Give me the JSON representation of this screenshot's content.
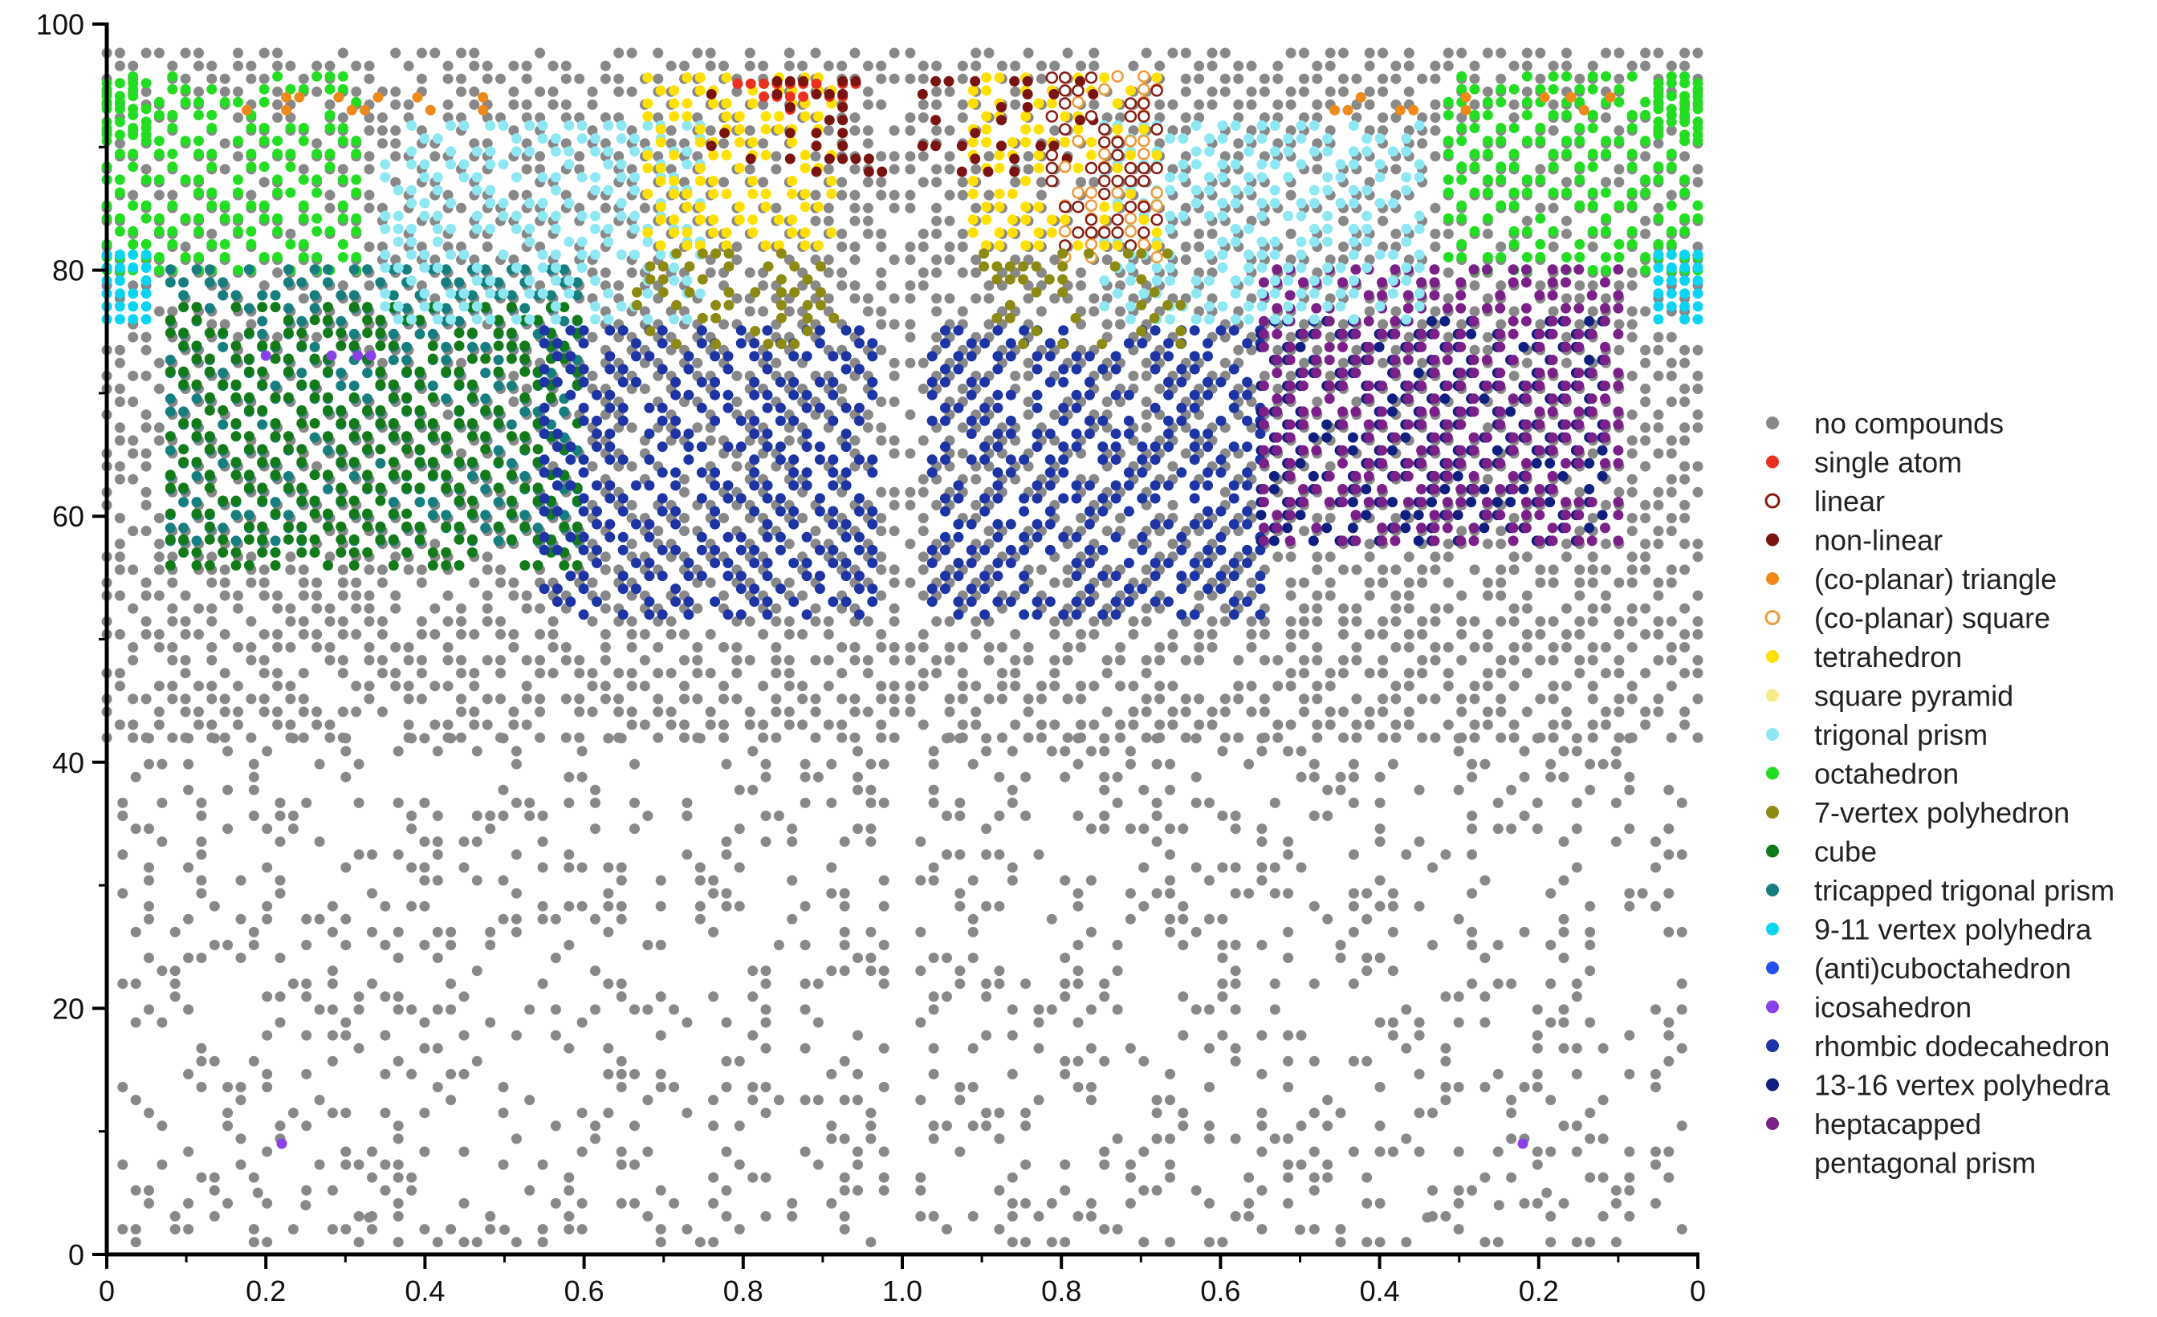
{
  "chart_data": {
    "type": "scatter",
    "title": "",
    "xlabel": "",
    "ylabel": "",
    "ylim": [
      0,
      100
    ],
    "x_tick_labels": [
      "0",
      "0.2",
      "0.4",
      "0.6",
      "0.8",
      "1.0",
      "0.8",
      "0.6",
      "0.4",
      "0.2",
      "0"
    ],
    "y_tick_labels": [
      "0",
      "20",
      "40",
      "60",
      "80",
      "100"
    ],
    "grid": false,
    "legend_position": "right",
    "legend": [
      {
        "label": "no compounds",
        "color": "#888888",
        "marker": "filled"
      },
      {
        "label": "single atom",
        "color": "#e8311f",
        "marker": "filled"
      },
      {
        "label": "linear",
        "color": "#8a1c12",
        "marker": "open"
      },
      {
        "label": "non-linear",
        "color": "#7a1410",
        "marker": "filled"
      },
      {
        "label": "(co-planar) triangle",
        "color": "#ef8a1a",
        "marker": "filled"
      },
      {
        "label": "(co-planar) square",
        "color": "#ee9a3a",
        "marker": "open"
      },
      {
        "label": "tetrahedron",
        "color": "#ffe000",
        "marker": "filled"
      },
      {
        "label": "square pyramid",
        "color": "#f6ec8a",
        "marker": "filled"
      },
      {
        "label": "trigonal prism",
        "color": "#8ee8f4",
        "marker": "filled"
      },
      {
        "label": "octahedron",
        "color": "#22dd22",
        "marker": "filled"
      },
      {
        "label": "7-vertex polyhedron",
        "color": "#8c8a12",
        "marker": "filled"
      },
      {
        "label": "cube",
        "color": "#137a1a",
        "marker": "filled"
      },
      {
        "label": "tricapped trigonal prism",
        "color": "#177e80",
        "marker": "filled"
      },
      {
        "label": "9-11 vertex polyhedra",
        "color": "#0ad4f2",
        "marker": "filled"
      },
      {
        "label": "(anti)cuboctahedron",
        "color": "#2250ee",
        "marker": "filled"
      },
      {
        "label": "icosahedron",
        "color": "#8a40e8",
        "marker": "filled"
      },
      {
        "label": "rhombic dodecahedron",
        "color": "#1c34a4",
        "marker": "filled"
      },
      {
        "label": "13-16 vertex polyhedra",
        "color": "#0f1f80",
        "marker": "filled"
      },
      {
        "label": "heptacapped\npentagonal prism",
        "color": "#7a2088",
        "marker": "filled"
      }
    ],
    "regions": [
      {
        "category": "no compounds",
        "x": [
          0.0,
          1.0
        ],
        "y": [
          42,
          98
        ],
        "mirrored": true,
        "pattern": "diagonal"
      },
      {
        "category": "no compounds",
        "x": [
          0.02,
          0.99
        ],
        "y": [
          1,
          42
        ],
        "mirrored": true,
        "pattern": "sparse-diagonal"
      },
      {
        "category": "octahedron",
        "x": [
          0.0,
          0.32
        ],
        "y": [
          80,
          96
        ],
        "mirrored": true,
        "pattern": "diagonal"
      },
      {
        "category": "octahedron",
        "x": [
          0.0,
          0.06
        ],
        "y": [
          91,
          96
        ],
        "mirrored": true,
        "pattern": "block"
      },
      {
        "category": "(co-planar) triangle",
        "x": [
          0.11,
          0.5
        ],
        "y": [
          93,
          95
        ],
        "mirrored": true,
        "pattern": "scattered"
      },
      {
        "category": "tricapped trigonal prism",
        "x": [
          0.08,
          0.6
        ],
        "y": [
          58,
          81
        ],
        "mirrored": false,
        "pattern": "diagonal"
      },
      {
        "category": "cube",
        "x": [
          0.08,
          0.6
        ],
        "y": [
          56,
          78
        ],
        "mirrored": false,
        "pattern": "diagonal"
      },
      {
        "category": "rhombic dodecahedron",
        "x": [
          0.55,
          0.97
        ],
        "y": [
          52,
          76
        ],
        "mirrored": true,
        "pattern": "diagonal"
      },
      {
        "category": "13-16 vertex polyhedra",
        "x": [
          0.12,
          0.55
        ],
        "y": [
          58,
          76
        ],
        "mirrored": "right-only",
        "pattern": "diagonal"
      },
      {
        "category": "heptacapped pentagonal prism",
        "x": [
          0.1,
          0.55
        ],
        "y": [
          58,
          81
        ],
        "mirrored": "right-only",
        "pattern": "diagonal"
      },
      {
        "category": "trigonal prism",
        "x": [
          0.35,
          0.75
        ],
        "y": [
          76,
          92
        ],
        "mirrored": true,
        "pattern": "diagonal"
      },
      {
        "category": "tetrahedron",
        "x": [
          0.68,
          0.92
        ],
        "y": [
          82,
          96
        ],
        "mirrored": true,
        "pattern": "diagonal"
      },
      {
        "category": "single atom",
        "x": [
          0.76,
          0.98
        ],
        "y": [
          92,
          96
        ],
        "mirrored": "left-only",
        "pattern": "triangle"
      },
      {
        "category": "non-linear",
        "x": [
          0.76,
          0.98
        ],
        "y": [
          88,
          96
        ],
        "mirrored": true,
        "pattern": "scattered"
      },
      {
        "category": "(co-planar) square",
        "x": [
          0.68,
          0.8
        ],
        "y": [
          80,
          96
        ],
        "mirrored": "right-only",
        "pattern": "scattered"
      },
      {
        "category": "linear",
        "x": [
          0.68,
          0.82
        ],
        "y": [
          82,
          96
        ],
        "mirrored": "right-only",
        "pattern": "scattered"
      },
      {
        "category": "7-vertex polyhedron",
        "x": [
          0.65,
          0.92
        ],
        "y": [
          74,
          82
        ],
        "mirrored": true,
        "pattern": "scattered"
      },
      {
        "category": "icosahedron",
        "x": [
          0.2,
          0.48
        ],
        "y": [
          72,
          74
        ],
        "mirrored": false,
        "pattern": "row"
      },
      {
        "category": "9-11 vertex polyhedra",
        "x": [
          0.0,
          0.06
        ],
        "y": [
          76,
          82
        ],
        "mirrored": true,
        "pattern": "block"
      }
    ],
    "points": [
      {
        "x": 0.22,
        "y": 9,
        "side": "left",
        "category": "icosahedron"
      },
      {
        "x": 0.22,
        "y": 9,
        "side": "right",
        "category": "icosahedron"
      },
      {
        "x": 0.19,
        "y": 5,
        "side": "left",
        "category": "no compounds"
      },
      {
        "x": 0.25,
        "y": 4,
        "side": "left",
        "category": "no compounds"
      },
      {
        "x": 0.33,
        "y": 3,
        "side": "left",
        "category": "no compounds"
      },
      {
        "x": 0.5,
        "y": 2,
        "side": "left",
        "category": "no compounds"
      },
      {
        "x": 0.5,
        "y": 2,
        "side": "right",
        "category": "no compounds"
      },
      {
        "x": 0.34,
        "y": 3,
        "side": "right",
        "category": "no compounds"
      },
      {
        "x": 0.25,
        "y": 4,
        "side": "right",
        "category": "no compounds"
      },
      {
        "x": 0.19,
        "y": 5,
        "side": "right",
        "category": "no compounds"
      }
    ]
  }
}
